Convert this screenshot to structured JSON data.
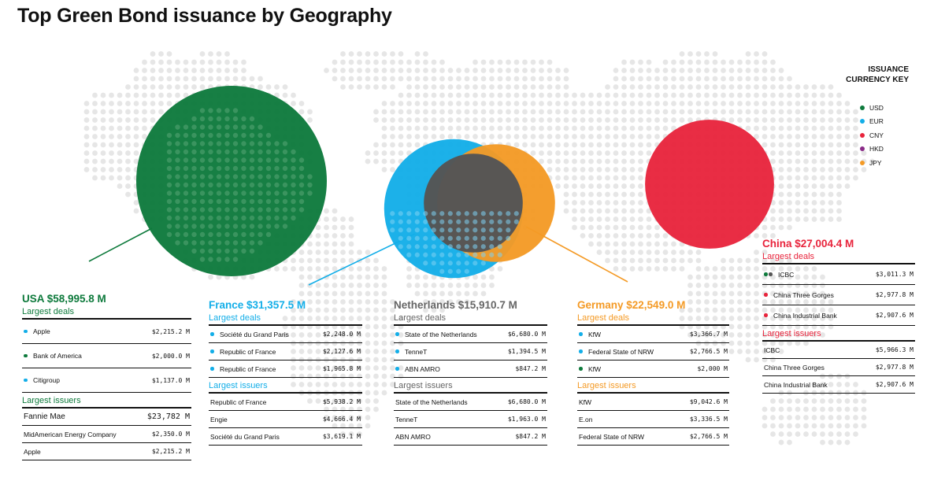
{
  "title": "Top Green Bond issuance by Geography",
  "key": {
    "title_line1": "ISSUANCE",
    "title_line2": "CURRENCY KEY",
    "items": [
      {
        "label": "USD",
        "color": "#0e7a3c"
      },
      {
        "label": "EUR",
        "color": "#13aee8"
      },
      {
        "label": "CNY",
        "color": "#e8243c"
      },
      {
        "label": "HKD",
        "color": "#8a2c88"
      },
      {
        "label": "JPY",
        "color": "#f49a25"
      }
    ]
  },
  "chart_data": {
    "type": "bubble",
    "title": "Top Green Bond issuance by Geography",
    "unit": "$ M",
    "series": [
      {
        "name": "USA",
        "value": 58995.8,
        "color": "#0e7a3c"
      },
      {
        "name": "France",
        "value": 31357.5,
        "color": "#13aee8"
      },
      {
        "name": "China",
        "value": 27004.4,
        "color": "#e8243c"
      },
      {
        "name": "Germany",
        "value": 22549.0,
        "color": "#f49a25"
      },
      {
        "name": "Netherlands",
        "value": 15910.7,
        "color": "#555555"
      }
    ]
  },
  "panels": {
    "usa": {
      "title": "USA $58,995.8 M",
      "color": "#0e7a3c",
      "deals_label": "Largest deals",
      "deals": [
        {
          "name": "Apple",
          "value": "$2,215.2 M",
          "dots": [
            "#13aee8"
          ]
        },
        {
          "name": "Bank of America",
          "value": "$2,000.0 M",
          "dots": [
            "#0e7a3c"
          ]
        },
        {
          "name": "Citigroup",
          "value": "$1,137.0 M",
          "dots": [
            "#13aee8"
          ]
        }
      ],
      "issuers_label": "Largest issuers",
      "issuers": [
        {
          "name": "Fannie Mae",
          "value": "$23,782 M"
        },
        {
          "name": "MidAmerican Energy Company",
          "value": "$2,350.0 M"
        },
        {
          "name": "Apple",
          "value": "$2,215.2 M"
        }
      ]
    },
    "france": {
      "title": "France $31,357.5 M",
      "color": "#13aee8",
      "deals_label": "Largest deals",
      "deals": [
        {
          "name": "Société du Grand Paris",
          "value": "$2,248.0 M",
          "dots": [
            "#13aee8"
          ]
        },
        {
          "name": "Republic of France",
          "value": "$2,127.6 M",
          "dots": [
            "#13aee8"
          ]
        },
        {
          "name": "Republic of France",
          "value": "$1,965.8 M",
          "dots": [
            "#13aee8"
          ]
        }
      ],
      "issuers_label": "Largest issuers",
      "issuers": [
        {
          "name": "Republic of France",
          "value": "$5,938.2 M"
        },
        {
          "name": "Engie",
          "value": "$4,666.4 M"
        },
        {
          "name": "Société du Grand Paris",
          "value": "$3,619.1 M"
        }
      ]
    },
    "netherlands": {
      "title": "Netherlands $15,910.7 M",
      "color": "#666666",
      "deals_label": "Largest deals",
      "deals": [
        {
          "name": "State of the Netherlands",
          "value": "$6,680.0 M",
          "dots": [
            "#13aee8"
          ]
        },
        {
          "name": "TenneT",
          "value": "$1,394.5 M",
          "dots": [
            "#13aee8"
          ]
        },
        {
          "name": "ABN AMRO",
          "value": "$847.2 M",
          "dots": [
            "#13aee8"
          ]
        }
      ],
      "issuers_label": "Largest issuers",
      "issuers": [
        {
          "name": "State of the Netherlands",
          "value": "$6,680.0 M"
        },
        {
          "name": "TenneT",
          "value": "$1,963.0 M"
        },
        {
          "name": "ABN AMRO",
          "value": "$847.2 M"
        }
      ]
    },
    "germany": {
      "title": "Germany $22,549.0 M",
      "color": "#f49a25",
      "deals_label": "Largest deals",
      "deals": [
        {
          "name": "KfW",
          "value": "$3,366.7 M",
          "dots": [
            "#13aee8"
          ]
        },
        {
          "name": "Federal State of NRW",
          "value": "$2,766.5 M",
          "dots": [
            "#13aee8"
          ]
        },
        {
          "name": "KfW",
          "value": "$2,000 M",
          "dots": [
            "#0e7a3c"
          ]
        }
      ],
      "issuers_label": "Largest issuers",
      "issuers": [
        {
          "name": "KfW",
          "value": "$9,042.6 M"
        },
        {
          "name": "E.on",
          "value": "$3,336.5 M"
        },
        {
          "name": "Federal State of NRW",
          "value": "$2,766.5 M"
        }
      ]
    },
    "china": {
      "title": "China $27,004.4 M",
      "color": "#e8243c",
      "deals_label": "Largest deals",
      "deals": [
        {
          "name": "ICBC",
          "value": "$3,011.3 M",
          "dots": [
            "#0e7a3c",
            "#555555"
          ]
        },
        {
          "name": "China Three Gorges",
          "value": "$2,977.8 M",
          "dots": [
            "#e8243c"
          ]
        },
        {
          "name": "China Industrial Bank",
          "value": "$2,907.6 M",
          "dots": [
            "#e8243c"
          ]
        }
      ],
      "issuers_label": "Largest issuers",
      "issuers": [
        {
          "name": "ICBC",
          "value": "$5,966.3 M"
        },
        {
          "name": "China Three Gorges",
          "value": "$2,977.8 M"
        },
        {
          "name": "China Industrial Bank",
          "value": "$2,907.6 M"
        }
      ]
    }
  }
}
